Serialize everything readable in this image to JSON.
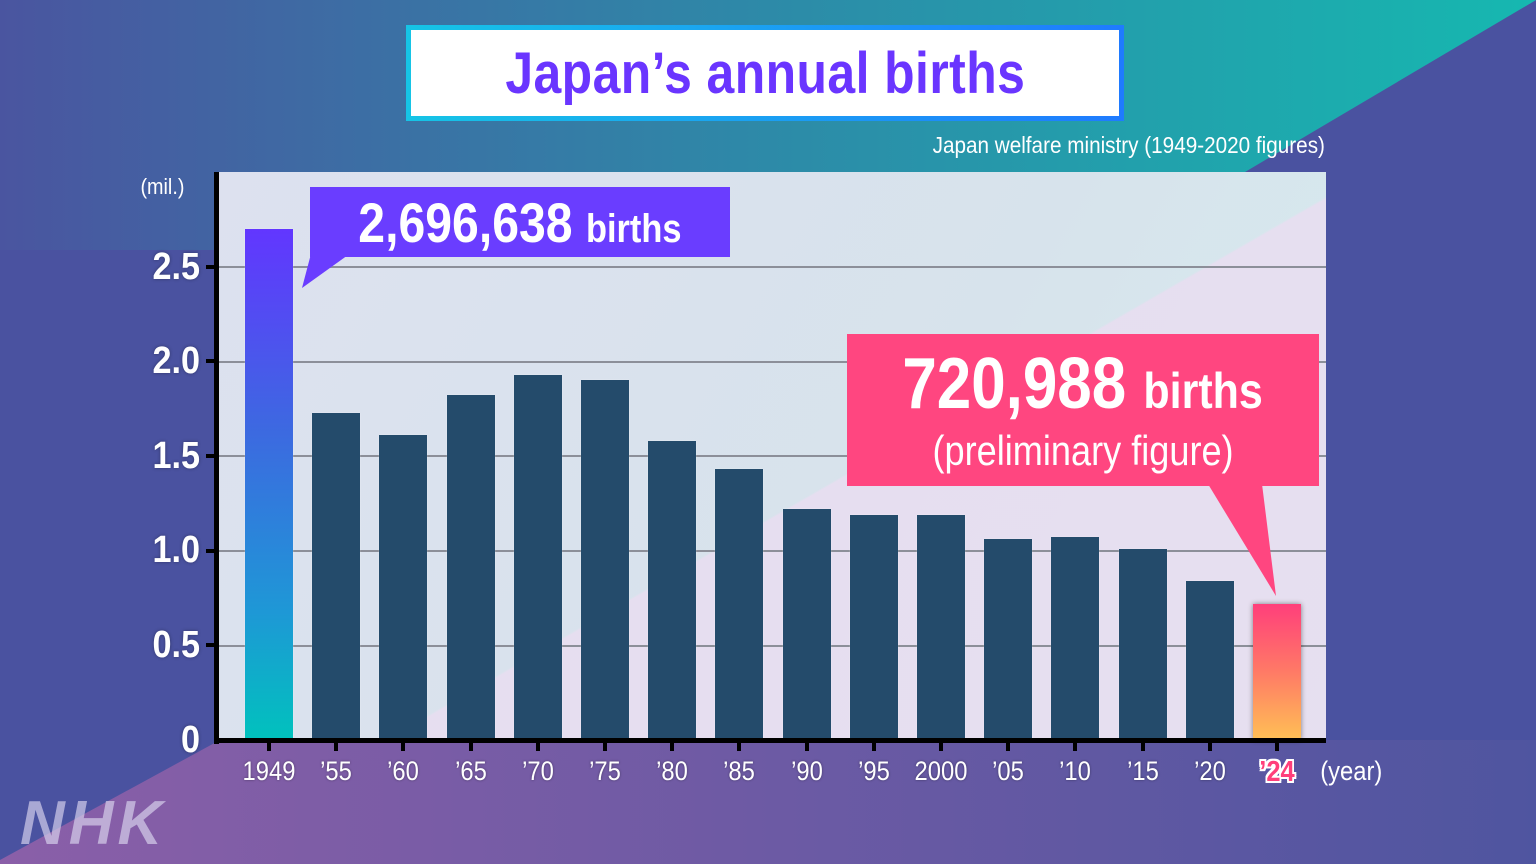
{
  "title": "Japan’s annual births",
  "source": "Japan welfare ministry (1949-2020 figures)",
  "logo": "NHK",
  "colors": {
    "title_text": "#6a35ff",
    "bar_default": "#244b6b",
    "bar_1949_top": "#6236ff",
    "bar_1949_bottom": "#00c2bd",
    "bar_2024_top": "#ff3f7b",
    "bar_2024_bottom": "#ffc055",
    "callout_1949": "#6a3dff",
    "callout_2024": "#ff4680",
    "background": "#4a52a0"
  },
  "y_axis": {
    "unit_label": "(mil.)",
    "ticks": [
      "2.5",
      "2.0",
      "1.5",
      "1.0",
      "0.5",
      "0"
    ]
  },
  "x_axis": {
    "unit_label": "(year)",
    "ticks": [
      "1949",
      "’55",
      "’60",
      "’65",
      "’70",
      "’75",
      "’80",
      "’85",
      "’90",
      "’95",
      "2000",
      "’05",
      "’10",
      "’15",
      "’20",
      "’24"
    ]
  },
  "callouts": {
    "first": {
      "value": "2,696,638",
      "unit": "births"
    },
    "last": {
      "value": "720,988",
      "unit": "births",
      "note": "(preliminary figure)"
    }
  },
  "chart_data": {
    "type": "bar",
    "title": "Japan’s annual births",
    "subtitle": "Japan welfare ministry (1949-2020 figures)",
    "xlabel": "(year)",
    "ylabel": "(mil.)",
    "ylim": [
      0,
      2.8
    ],
    "yticks": [
      0,
      0.5,
      1.0,
      1.5,
      2.0,
      2.5
    ],
    "grid": true,
    "legend": null,
    "categories": [
      "1949",
      "'55",
      "'60",
      "'65",
      "'70",
      "'75",
      "'80",
      "'85",
      "'90",
      "'95",
      "2000",
      "'05",
      "'10",
      "'15",
      "'20",
      "'24"
    ],
    "values": [
      2.697,
      1.73,
      1.61,
      1.82,
      1.93,
      1.9,
      1.58,
      1.43,
      1.22,
      1.19,
      1.19,
      1.06,
      1.07,
      1.01,
      0.84,
      0.721
    ],
    "annotations": [
      {
        "category": "1949",
        "text": "2,696,638 births"
      },
      {
        "category": "'24",
        "text": "720,988 births (preliminary figure)"
      }
    ]
  }
}
